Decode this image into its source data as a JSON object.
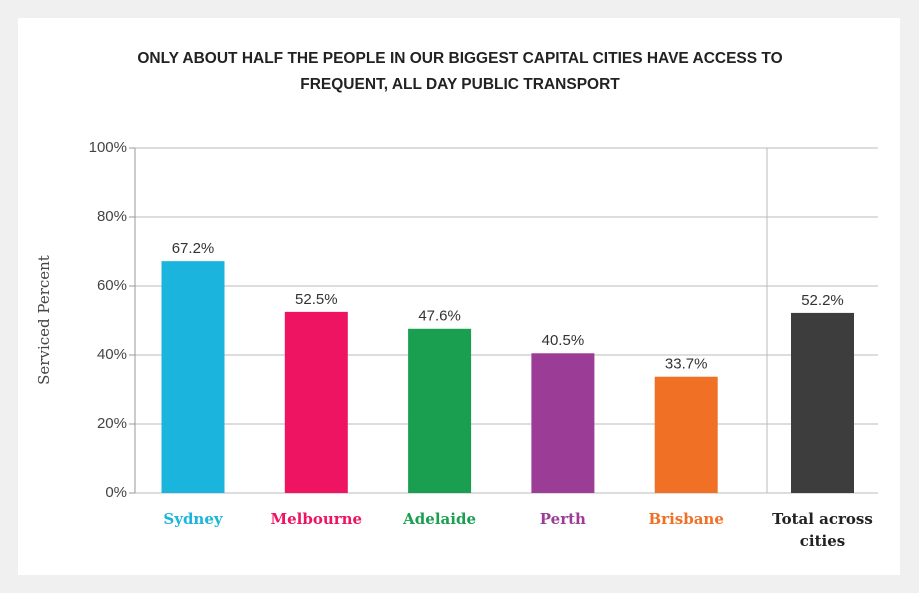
{
  "chart_data": {
    "type": "bar",
    "title": "ONLY ABOUT HALF THE PEOPLE IN OUR BIGGEST CAPITAL CITIES HAVE ACCESS TO FREQUENT, ALL DAY PUBLIC TRANSPORT",
    "y_label": "Serviced Percent",
    "categories": [
      "Sydney",
      "Melbourne",
      "Adelaide",
      "Perth",
      "Brisbane",
      "Total across cities"
    ],
    "values": [
      67.2,
      52.5,
      47.6,
      40.5,
      33.7,
      52.2
    ],
    "value_labels": [
      "67.2%",
      "52.5%",
      "47.6%",
      "40.5%",
      "33.7%",
      "52.2%"
    ],
    "colors": [
      "#1ab4dc",
      "#ee1461",
      "#1a9e50",
      "#9b3d97",
      "#f07026",
      "#3d3d3d"
    ],
    "ylim": [
      0,
      100
    ],
    "yticks": [
      {
        "value": 0,
        "label": "0%"
      },
      {
        "value": 20,
        "label": "20%"
      },
      {
        "value": 40,
        "label": "40%"
      },
      {
        "value": 60,
        "label": "60%"
      },
      {
        "value": 80,
        "label": "80%"
      },
      {
        "value": 100,
        "label": "100%"
      }
    ],
    "grid": true
  }
}
